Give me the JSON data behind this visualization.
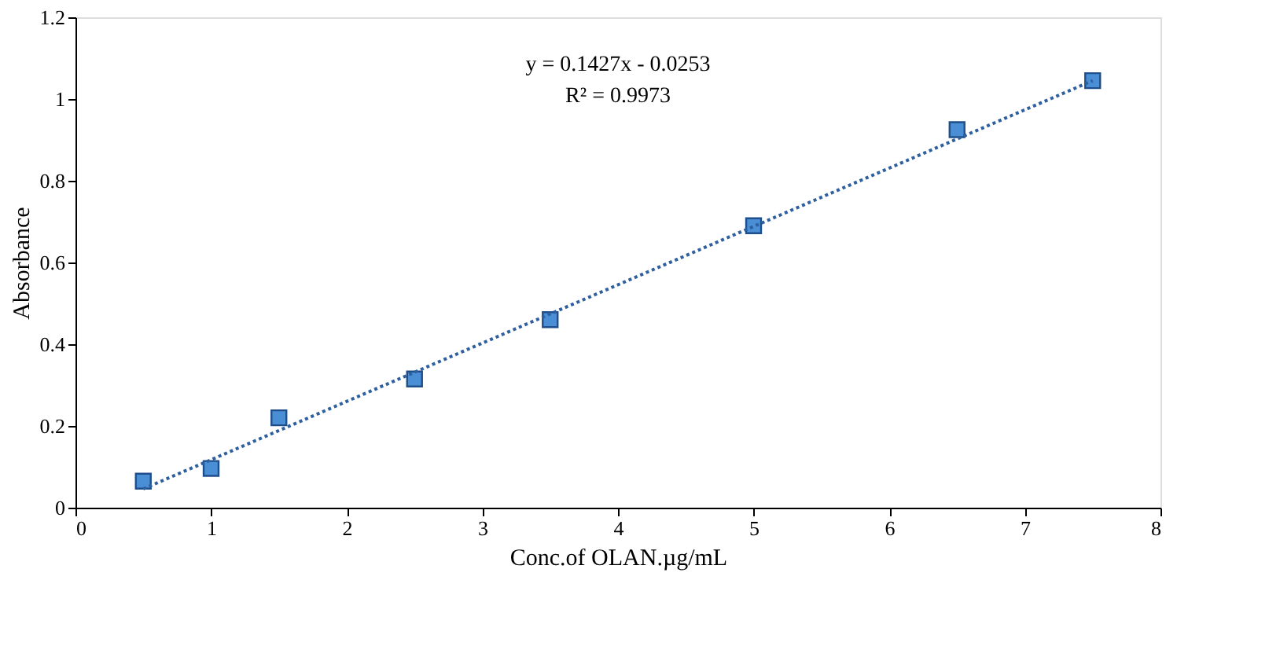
{
  "chart_data": {
    "type": "scatter",
    "xlabel": "Conc.of OLAN.µg/mL",
    "ylabel": "Absorbance",
    "xlim": [
      0,
      8
    ],
    "xticks": [
      0,
      1,
      2,
      3,
      4,
      5,
      6,
      7,
      8
    ],
    "ylim": [
      0,
      1.2
    ],
    "yticks": [
      0,
      0.2,
      0.4,
      0.6,
      0.8,
      1,
      1.2
    ],
    "grid": false,
    "series": [
      {
        "color": "#4a8fd6",
        "marker": "square",
        "x": [
          0.5,
          1,
          1.5,
          2.5,
          3.5,
          5,
          6.5,
          7.5
        ],
        "values": [
          0.065,
          0.096,
          0.22,
          0.315,
          0.46,
          0.69,
          0.925,
          1.045
        ]
      },
      {
        "type": "line",
        "color": "#2e5f9e",
        "line_style": "dotted",
        "marker": "none",
        "x": [
          0.5,
          7.5
        ],
        "values": [
          0.046,
          1.045
        ]
      }
    ],
    "annotations": [
      "y = 0.1427x - 0.0253",
      "R² = 0.9973"
    ]
  }
}
